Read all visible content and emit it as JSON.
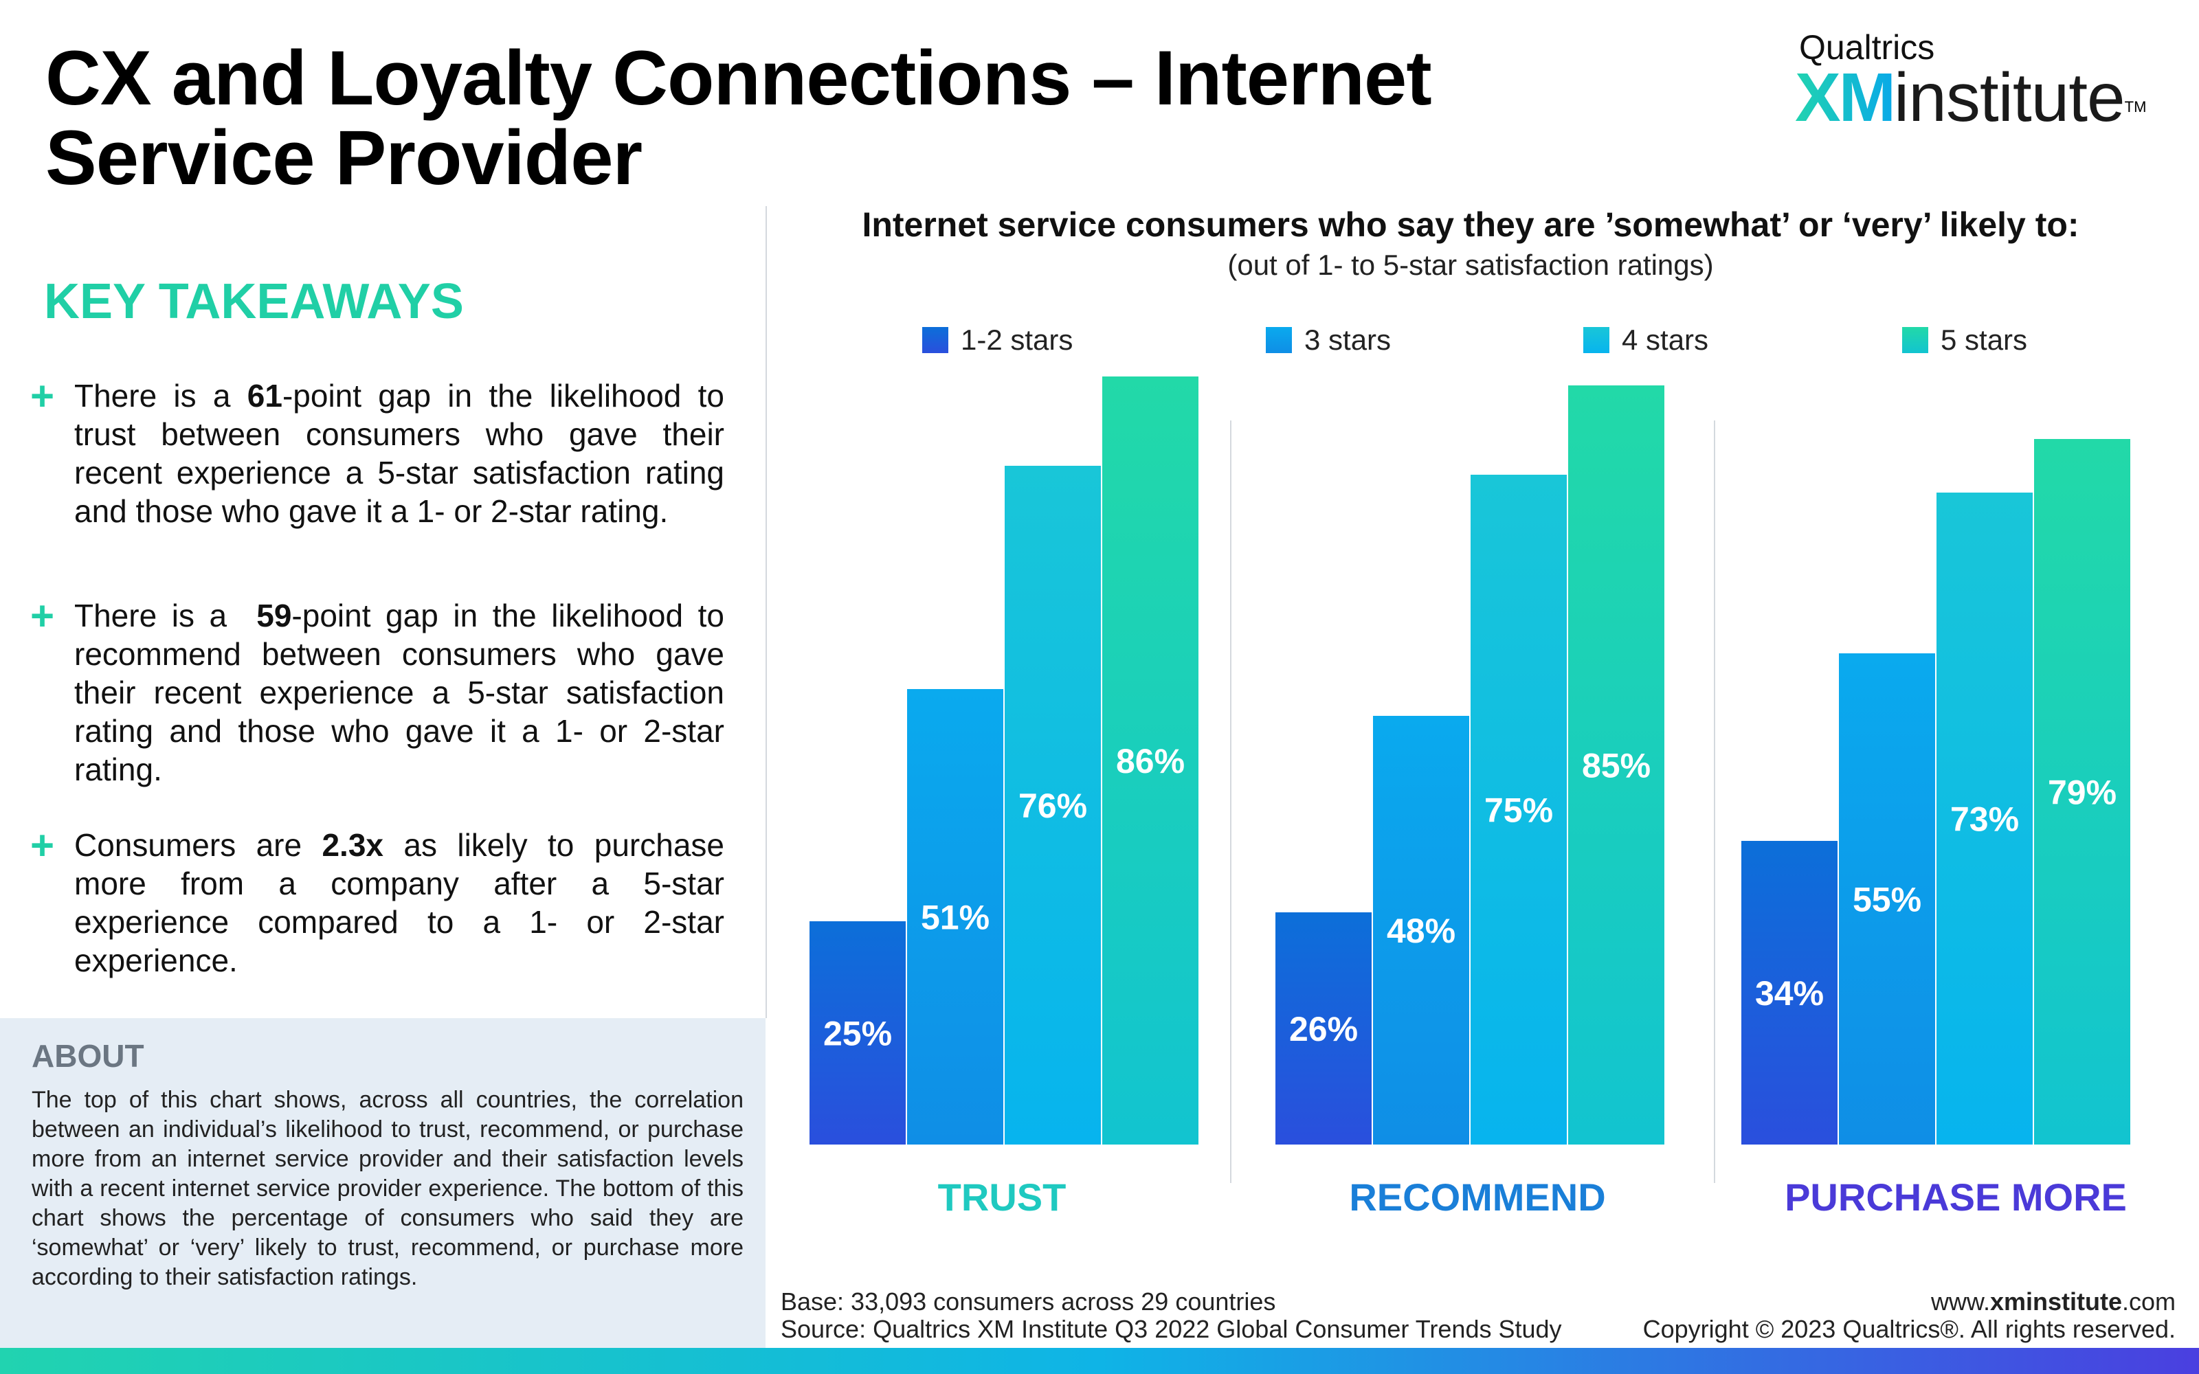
{
  "header": {
    "title_line1": "CX and Loyalty Connections – Internet",
    "title_line2": "Service Provider",
    "logo_brand": "Qualtrics",
    "logo_xm": "XM",
    "logo_institute": "institute",
    "logo_tm": "TM"
  },
  "takeaways": {
    "heading": "KEY TAKEAWAYS",
    "items": [
      {
        "pre": "There is a ",
        "bold": "61",
        "post": "-point gap in the likelihood to trust between consumers who gave their recent experience a 5-star satisfaction rating and those who gave it a 1- or 2-star rating."
      },
      {
        "pre": "There is a  ",
        "bold": "59",
        "post": "-point gap in the likelihood to recommend between consumers who gave their recent experience a 5-star satisfaction rating and those who gave it a 1- or 2-star rating."
      },
      {
        "pre": "Consumers are ",
        "bold": "2.3x",
        "post": " as likely to purchase more from a company after a 5-star experience compared to a 1- or 2-star experience."
      }
    ]
  },
  "about": {
    "title": "ABOUT",
    "text": "The top of this chart shows, across all countries, the correlation between an individual’s likelihood to trust, recommend, or purchase more from an internet service provider and their satisfaction levels with a recent internet service provider experience. The bottom of this chart shows the percentage of consumers who said they are ‘somewhat’ or ‘very’ likely to trust, recommend, or purchase more according to their satisfaction ratings."
  },
  "chart_data": {
    "type": "bar",
    "title": "Internet service consumers who say they are ’somewhat’ or ‘very’ likely to:",
    "subtitle": "(out of 1- to 5-star satisfaction ratings)",
    "categories": [
      "TRUST",
      "RECOMMEND",
      "PURCHASE MORE"
    ],
    "category_colors": [
      "#1fc9c0",
      "#1a7fd8",
      "#4a3ad8"
    ],
    "series": [
      {
        "name": "1-2 stars",
        "values": [
          25,
          26,
          34
        ],
        "color_top": "#0c6fd9",
        "color_bottom": "#2a4fdd"
      },
      {
        "name": "3 stars",
        "values": [
          51,
          48,
          55
        ],
        "color_top": "#0aaaee",
        "color_bottom": "#0f8ee6"
      },
      {
        "name": "4 stars",
        "values": [
          76,
          75,
          73
        ],
        "color_top": "#19c6d8",
        "color_bottom": "#07b4ee"
      },
      {
        "name": "5 stars",
        "values": [
          86,
          85,
          79
        ],
        "color_top": "#22d9a8",
        "color_bottom": "#12c4d0"
      }
    ],
    "value_suffix": "%",
    "ylim": [
      0,
      100
    ],
    "legend_position": "top",
    "grid": false
  },
  "footer": {
    "base": "Base: 33,093 consumers across 29 countries",
    "source": "Source: Qualtrics XM Institute Q3 2022 Global Consumer Trends Study",
    "url_pre": "www.",
    "url_bold": "xminstitute",
    "url_post": ".com",
    "copyright": "Copyright © 2023 Qualtrics®. All rights reserved."
  }
}
